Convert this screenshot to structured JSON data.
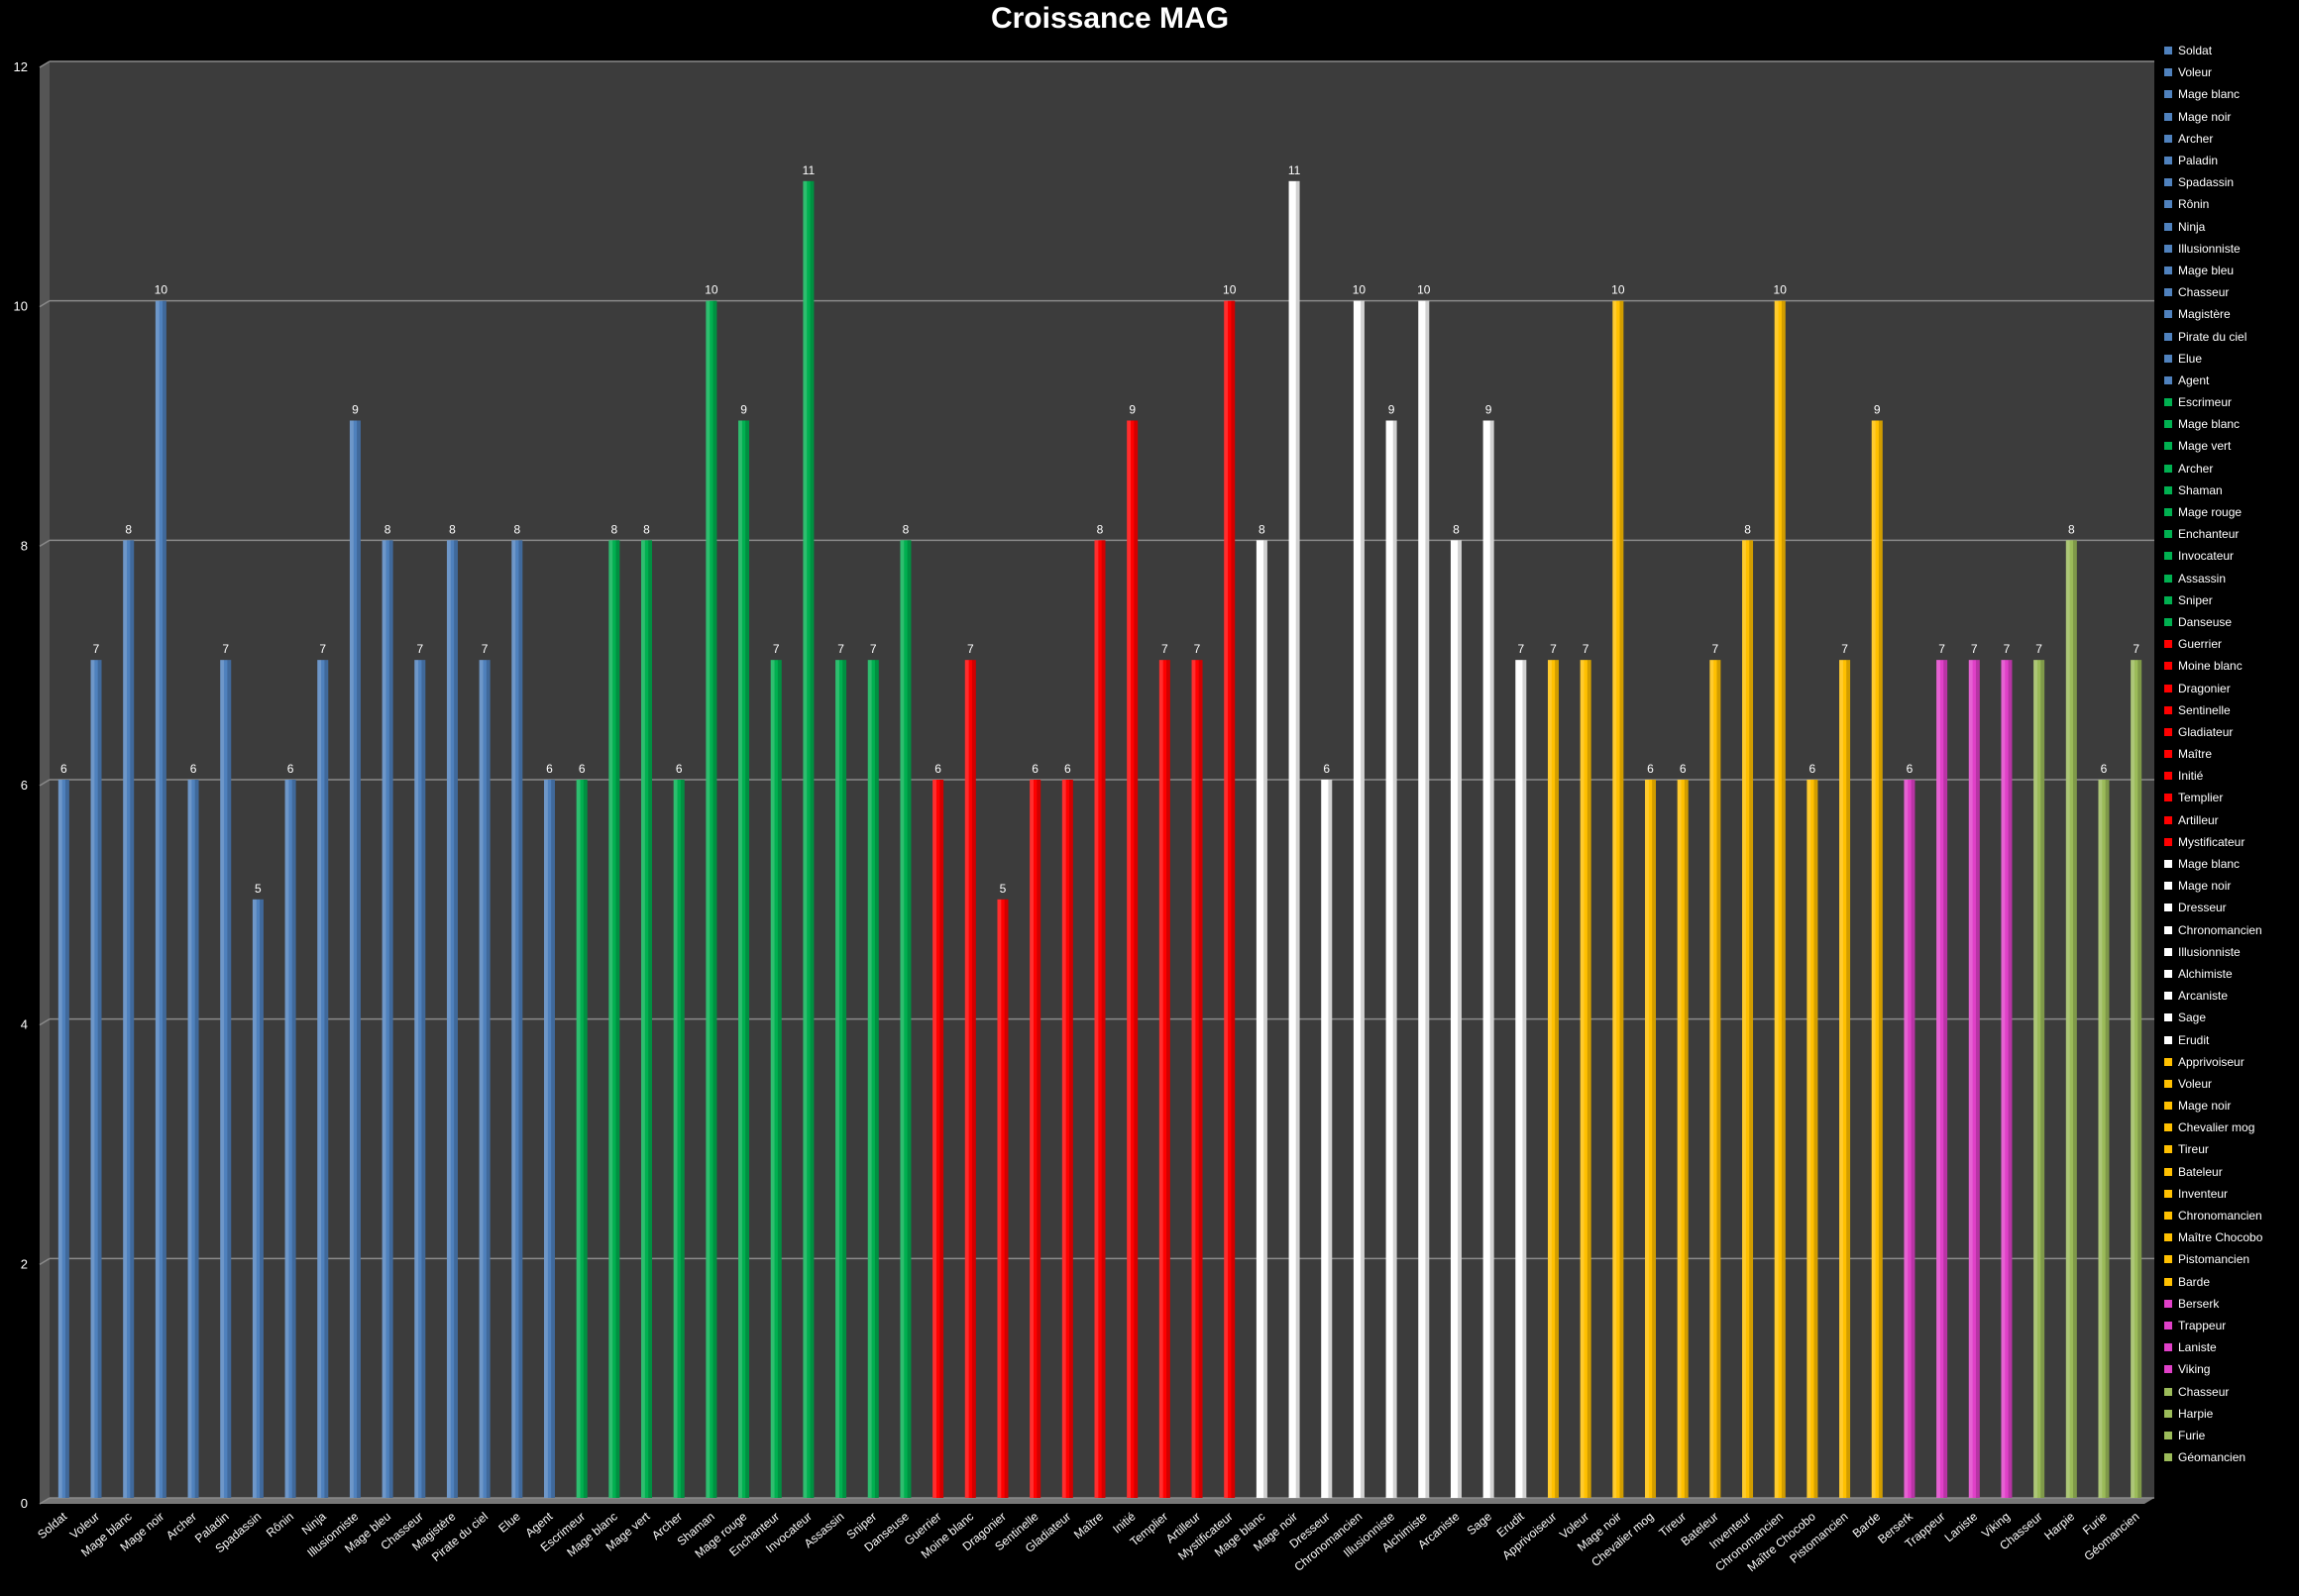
{
  "chart_data": {
    "type": "bar",
    "title": "Croissance MAG",
    "xlabel": "",
    "ylabel": "",
    "ylim": [
      0,
      12
    ],
    "yticks": [
      0,
      2,
      4,
      6,
      8,
      10,
      12
    ],
    "grid": true,
    "legend_position": "right",
    "categories": [
      "Soldat",
      "Voleur",
      "Mage blanc",
      "Mage noir",
      "Archer",
      "Paladin",
      "Spadassin",
      "Rônin",
      "Ninja",
      "Illusionniste",
      "Mage bleu",
      "Chasseur",
      "Magistère",
      "Pirate du ciel",
      "Elue",
      "Agent",
      "Escrimeur",
      "Mage blanc",
      "Mage vert",
      "Archer",
      "Shaman",
      "Mage rouge",
      "Enchanteur",
      "Invocateur",
      "Assassin",
      "Sniper",
      "Danseuse",
      "Guerrier",
      "Moine blanc",
      "Dragonier",
      "Sentinelle",
      "Gladiateur",
      "Maître",
      "Initié",
      "Templier",
      "Artilleur",
      "Mystificateur",
      "Mage blanc",
      "Mage noir",
      "Dresseur",
      "Chronomancien",
      "Illusionniste",
      "Alchimiste",
      "Arcaniste",
      "Sage",
      "Erudit",
      "Apprivoiseur",
      "Voleur",
      "Mage noir",
      "Chevalier mog",
      "Tireur",
      "Bateleur",
      "Inventeur",
      "Chronomancien",
      "Maître Chocobo",
      "Pistomancien",
      "Barde",
      "Berserk",
      "Trappeur",
      "Laniste",
      "Viking",
      "Chasseur",
      "Harpie",
      "Furie",
      "Géomancien"
    ],
    "values": [
      6,
      7,
      8,
      10,
      6,
      7,
      5,
      6,
      7,
      9,
      8,
      7,
      8,
      7,
      8,
      6,
      6,
      8,
      8,
      6,
      10,
      9,
      7,
      11,
      7,
      7,
      8,
      6,
      7,
      5,
      6,
      6,
      8,
      9,
      7,
      7,
      10,
      8,
      11,
      6,
      10,
      9,
      10,
      8,
      9,
      7,
      7,
      7,
      10,
      6,
      6,
      7,
      8,
      10,
      6,
      7,
      9,
      6,
      7,
      7,
      7,
      7,
      8,
      6,
      7
    ],
    "bar_colors": [
      "#4f81bd",
      "#4f81bd",
      "#4f81bd",
      "#4f81bd",
      "#4f81bd",
      "#4f81bd",
      "#4f81bd",
      "#4f81bd",
      "#4f81bd",
      "#4f81bd",
      "#4f81bd",
      "#4f81bd",
      "#4f81bd",
      "#4f81bd",
      "#4f81bd",
      "#4f81bd",
      "#00b050",
      "#00b050",
      "#00b050",
      "#00b050",
      "#00b050",
      "#00b050",
      "#00b050",
      "#00b050",
      "#00b050",
      "#00b050",
      "#00b050",
      "#ff0000",
      "#ff0000",
      "#ff0000",
      "#ff0000",
      "#ff0000",
      "#ff0000",
      "#ff0000",
      "#ff0000",
      "#ff0000",
      "#ff0000",
      "#ffffff",
      "#ffffff",
      "#ffffff",
      "#ffffff",
      "#ffffff",
      "#ffffff",
      "#ffffff",
      "#ffffff",
      "#ffffff",
      "#ffc000",
      "#ffc000",
      "#ffc000",
      "#ffc000",
      "#ffc000",
      "#ffc000",
      "#ffc000",
      "#ffc000",
      "#ffc000",
      "#ffc000",
      "#ffc000",
      "#e040c8",
      "#e040c8",
      "#e040c8",
      "#e040c8",
      "#9bbb59",
      "#9bbb59",
      "#9bbb59",
      "#9bbb59"
    ],
    "data_labels": true
  }
}
